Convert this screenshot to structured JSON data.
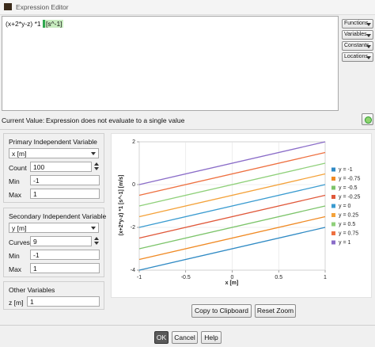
{
  "window": {
    "title": "Expression Editor"
  },
  "expression": {
    "text": "(x+2*y-z) *1",
    "highlighted": "[s^-1]"
  },
  "side_buttons": [
    "Functions",
    "Variables",
    "Constants",
    "Locations"
  ],
  "current_value": {
    "label": "Current Value:",
    "text": "Expression does not evaluate to a single value"
  },
  "primary": {
    "title": "Primary Independent Variable",
    "variable": "x [m]",
    "count_label": "Count",
    "count": 100,
    "min_label": "Min",
    "min": -1,
    "max_label": "Max",
    "max": 1
  },
  "secondary": {
    "title": "Secondary Independent Variable",
    "variable": "y [m]",
    "count_label": "Curves",
    "count": 9,
    "min_label": "Min",
    "min": -1,
    "max_label": "Max",
    "max": 1
  },
  "other": {
    "title": "Other Variables",
    "label": "z [m]",
    "value": 1
  },
  "chart_data": {
    "type": "line",
    "y_label": "(x+2*y-z) *1 [s^-1] [m/s]",
    "x_label": "x [m]",
    "x": [
      -1,
      1
    ],
    "series": [
      {
        "name": "y = -1",
        "color": "#2f8ac4",
        "values": [
          -4,
          -2
        ]
      },
      {
        "name": "y = -0.75",
        "color": "#f08a24",
        "values": [
          -3.5,
          -1.5
        ]
      },
      {
        "name": "y = -0.5",
        "color": "#7cc46a",
        "values": [
          -3,
          -1
        ]
      },
      {
        "name": "y = -0.25",
        "color": "#e0583a",
        "values": [
          -2.5,
          -0.5
        ]
      },
      {
        "name": "y = 0",
        "color": "#3a9bd0",
        "values": [
          -2,
          0
        ]
      },
      {
        "name": "y = 0.25",
        "color": "#f4a23a",
        "values": [
          -1.5,
          0.5
        ]
      },
      {
        "name": "y = 0.5",
        "color": "#8fd07a",
        "values": [
          -1,
          1
        ]
      },
      {
        "name": "y = 0.75",
        "color": "#ee7040",
        "values": [
          -0.5,
          1.5
        ]
      },
      {
        "name": "y = 1",
        "color": "#8a6cc8",
        "values": [
          0,
          2
        ]
      }
    ],
    "xlim": [
      -1,
      1
    ],
    "ylim": [
      -4,
      2
    ],
    "xticks": [
      -1,
      -0.5,
      0,
      0.5,
      1
    ],
    "yticks": [
      -4,
      -2,
      0,
      2
    ],
    "grid": true
  },
  "buttons": {
    "copy": "Copy to Clipboard",
    "reset": "Reset Zoom",
    "ok": "OK",
    "cancel": "Cancel",
    "help": "Help"
  }
}
